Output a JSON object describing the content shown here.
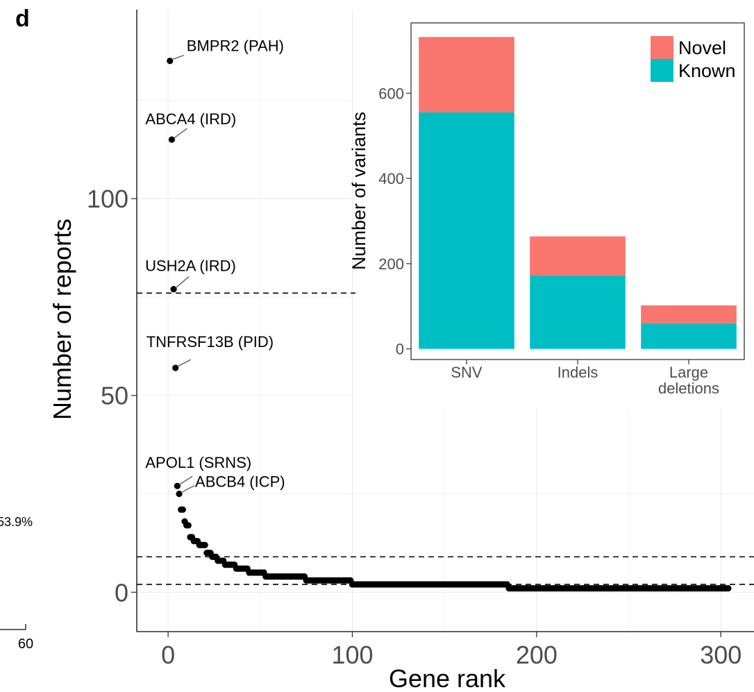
{
  "panel_letter": "d",
  "left_fragment": {
    "percent_label": "53.9%",
    "tick_label": "60"
  },
  "chart_data": [
    {
      "id": "main",
      "type": "scatter",
      "xlabel": "Gene rank",
      "ylabel": "Number of reports",
      "xlim": [
        -17,
        318
      ],
      "ylim": [
        -10,
        148
      ],
      "x_ticks": [
        0,
        100,
        200,
        300
      ],
      "y_ticks": [
        0,
        50,
        100
      ],
      "grid": true,
      "thresholds": [
        76,
        9,
        2
      ],
      "labeled_points": [
        {
          "x": 1,
          "y": 135,
          "label": "BMPR2 (PAH)"
        },
        {
          "x": 2,
          "y": 115,
          "label": "ABCA4 (IRD)"
        },
        {
          "x": 3,
          "y": 77,
          "label": "USH2A (IRD)"
        },
        {
          "x": 4,
          "y": 57,
          "label": "TNFRSF13B (PID)"
        },
        {
          "x": 5,
          "y": 27,
          "label": "APOL1 (SRNS)"
        },
        {
          "x": 6,
          "y": 25,
          "label": "ABCB4 (ICP)"
        }
      ],
      "rank_steps": [
        {
          "from": 7,
          "to": 8,
          "y": 21
        },
        {
          "from": 9,
          "to": 9,
          "y": 18
        },
        {
          "from": 10,
          "to": 11,
          "y": 17
        },
        {
          "from": 12,
          "to": 13,
          "y": 14
        },
        {
          "from": 14,
          "to": 16,
          "y": 13
        },
        {
          "from": 17,
          "to": 20,
          "y": 12
        },
        {
          "from": 21,
          "to": 23,
          "y": 10
        },
        {
          "from": 24,
          "to": 26,
          "y": 9
        },
        {
          "from": 27,
          "to": 30,
          "y": 8
        },
        {
          "from": 31,
          "to": 36,
          "y": 7
        },
        {
          "from": 37,
          "to": 43,
          "y": 6
        },
        {
          "from": 44,
          "to": 52,
          "y": 5
        },
        {
          "from": 53,
          "to": 74,
          "y": 4
        },
        {
          "from": 75,
          "to": 99,
          "y": 3
        },
        {
          "from": 100,
          "to": 184,
          "y": 2
        },
        {
          "from": 185,
          "to": 304,
          "y": 1
        }
      ]
    },
    {
      "id": "inset",
      "type": "bar",
      "stacked": true,
      "ylabel": "Number of variants",
      "ylim": [
        -25,
        765
      ],
      "y_ticks": [
        0,
        200,
        400,
        600
      ],
      "categories": [
        {
          "label_lines": [
            "SNV"
          ]
        },
        {
          "label_lines": [
            "Indels"
          ]
        },
        {
          "label_lines": [
            "Large",
            "deletions"
          ]
        }
      ],
      "series": [
        {
          "name": "Known",
          "color": "#00BFC4",
          "values": [
            555,
            172,
            60
          ]
        },
        {
          "name": "Novel",
          "color": "#F8766D",
          "values": [
            177,
            92,
            42
          ]
        }
      ],
      "legend_position": "top-right",
      "legend_order": [
        "Novel",
        "Known"
      ]
    }
  ]
}
